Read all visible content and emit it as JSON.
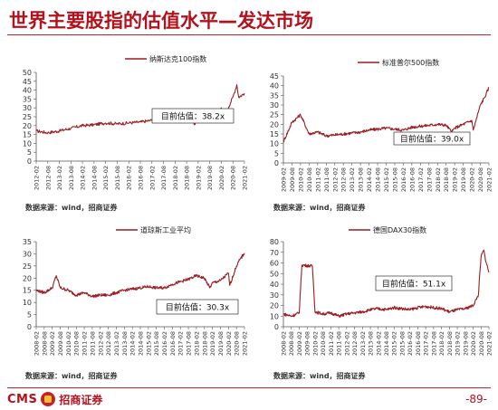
{
  "page": {
    "title": "世界主要股指的估值水平—发达市场",
    "page_number": "-89-"
  },
  "brand": {
    "cms": "CMS",
    "name": "招商证券",
    "color": "#b3121d"
  },
  "colors": {
    "line": "#9b1c22",
    "accent": "#c8202a"
  },
  "panels": [
    {
      "source": "数据来源：wind，招商证券"
    },
    {
      "source": "数据来源：wind，招商证券"
    },
    {
      "source": "数据来源：wind，招商证券"
    },
    {
      "source": "数据来源：wind，招商证券"
    }
  ],
  "chart_data": [
    {
      "type": "line",
      "series": [
        {
          "name": "纳斯达克100指数"
        }
      ],
      "annotation": "目前估值：38.2x",
      "ylim": [
        0,
        50
      ],
      "yticks": [
        0,
        5,
        10,
        15,
        20,
        25,
        30,
        35,
        40,
        45,
        50
      ],
      "xticks": [
        "2012-02",
        "2012-08",
        "2013-02",
        "2013-08",
        "2014-02",
        "2014-08",
        "2015-02",
        "2015-08",
        "2016-02",
        "2016-08",
        "2017-02",
        "2017-08",
        "2018-02",
        "2018-08",
        "2019-02",
        "2019-08",
        "2020-02",
        "2020-08",
        "2021-02"
      ],
      "points": [
        [
          "2012-02",
          17
        ],
        [
          "2012-08",
          16
        ],
        [
          "2013-02",
          17
        ],
        [
          "2013-08",
          18.5
        ],
        [
          "2014-02",
          20
        ],
        [
          "2014-08",
          20.5
        ],
        [
          "2015-02",
          21.5
        ],
        [
          "2015-08",
          21
        ],
        [
          "2016-02",
          21.5
        ],
        [
          "2016-08",
          22
        ],
        [
          "2017-02",
          23
        ],
        [
          "2017-08",
          24
        ],
        [
          "2018-02",
          25.5
        ],
        [
          "2018-08",
          26
        ],
        [
          "2018-12",
          20.5
        ],
        [
          "2019-02",
          23
        ],
        [
          "2019-08",
          25
        ],
        [
          "2020-02",
          30
        ],
        [
          "2020-03",
          24
        ],
        [
          "2020-08",
          36
        ],
        [
          "2020-10",
          43
        ],
        [
          "2020-11",
          36
        ],
        [
          "2021-02",
          38.2
        ]
      ]
    },
    {
      "type": "line",
      "series": [
        {
          "name": "标准普尔500指数"
        }
      ],
      "annotation": "目前估值：39.0x",
      "ylim": [
        0,
        45
      ],
      "yticks": [
        0,
        5,
        10,
        15,
        20,
        25,
        30,
        35,
        40,
        45
      ],
      "xticks": [
        "2009-02",
        "2009-08",
        "2010-02",
        "2010-08",
        "2011-02",
        "2011-08",
        "2012-02",
        "2012-08",
        "2013-02",
        "2013-08",
        "2014-02",
        "2014-08",
        "2015-02",
        "2015-08",
        "2016-02",
        "2016-08",
        "2017-02",
        "2017-08",
        "2018-02",
        "2018-08",
        "2019-02",
        "2019-08",
        "2020-02",
        "2020-08",
        "2021-02"
      ],
      "points": [
        [
          "2009-02",
          11
        ],
        [
          "2009-08",
          21
        ],
        [
          "2010-02",
          25
        ],
        [
          "2010-08",
          15
        ],
        [
          "2011-02",
          16
        ],
        [
          "2011-08",
          14
        ],
        [
          "2012-02",
          14.5
        ],
        [
          "2012-08",
          15
        ],
        [
          "2013-02",
          15.5
        ],
        [
          "2013-08",
          16
        ],
        [
          "2014-02",
          17
        ],
        [
          "2014-08",
          17.5
        ],
        [
          "2015-02",
          18
        ],
        [
          "2015-08",
          17.5
        ],
        [
          "2016-02",
          17
        ],
        [
          "2016-08",
          18.5
        ],
        [
          "2017-02",
          19
        ],
        [
          "2017-08",
          19.5
        ],
        [
          "2018-02",
          20
        ],
        [
          "2018-08",
          19.5
        ],
        [
          "2018-12",
          16
        ],
        [
          "2019-02",
          18
        ],
        [
          "2019-08",
          20
        ],
        [
          "2020-02",
          22
        ],
        [
          "2020-03",
          17
        ],
        [
          "2020-08",
          30
        ],
        [
          "2020-11",
          34
        ],
        [
          "2021-02",
          39
        ]
      ]
    },
    {
      "type": "line",
      "series": [
        {
          "name": "道琼斯工业平均"
        }
      ],
      "annotation": "目前估值：30.3x",
      "ylim": [
        0,
        35
      ],
      "yticks": [
        0,
        5,
        10,
        15,
        20,
        25,
        30,
        35
      ],
      "xticks": [
        "2008-02",
        "2008-08",
        "2009-02",
        "2009-08",
        "2010-02",
        "2010-08",
        "2011-02",
        "2011-08",
        "2012-02",
        "2012-08",
        "2013-02",
        "2013-08",
        "2014-02",
        "2014-08",
        "2015-02",
        "2015-08",
        "2016-02",
        "2016-08",
        "2017-02",
        "2017-08",
        "2018-02",
        "2018-08",
        "2019-02",
        "2019-08",
        "2020-02",
        "2020-08",
        "2021-02"
      ],
      "points": [
        [
          "2008-02",
          15
        ],
        [
          "2008-08",
          14
        ],
        [
          "2009-02",
          16
        ],
        [
          "2009-05",
          21
        ],
        [
          "2009-08",
          16
        ],
        [
          "2010-02",
          15
        ],
        [
          "2010-08",
          13
        ],
        [
          "2011-02",
          14
        ],
        [
          "2011-08",
          12.5
        ],
        [
          "2012-02",
          13
        ],
        [
          "2012-08",
          13
        ],
        [
          "2013-02",
          14
        ],
        [
          "2013-08",
          15
        ],
        [
          "2014-02",
          15.5
        ],
        [
          "2014-08",
          16
        ],
        [
          "2015-02",
          16.5
        ],
        [
          "2015-08",
          16
        ],
        [
          "2016-02",
          16
        ],
        [
          "2016-08",
          17.5
        ],
        [
          "2017-02",
          18.5
        ],
        [
          "2017-08",
          19.5
        ],
        [
          "2018-02",
          21
        ],
        [
          "2018-08",
          20
        ],
        [
          "2018-12",
          16
        ],
        [
          "2019-02",
          18
        ],
        [
          "2019-08",
          19
        ],
        [
          "2020-02",
          22
        ],
        [
          "2020-03",
          17
        ],
        [
          "2020-08",
          25
        ],
        [
          "2020-11",
          28
        ],
        [
          "2021-02",
          30.3
        ]
      ]
    },
    {
      "type": "line",
      "series": [
        {
          "name": "德国DAX30指数"
        }
      ],
      "annotation": "目前估值：51.1x",
      "ylim": [
        0,
        80
      ],
      "yticks": [
        0,
        10,
        20,
        30,
        40,
        50,
        60,
        70,
        80
      ],
      "xticks": [
        "2008-02",
        "2008-08",
        "2009-02",
        "2009-08",
        "2010-02",
        "2010-08",
        "2011-02",
        "2011-08",
        "2012-02",
        "2012-08",
        "2013-02",
        "2013-08",
        "2014-02",
        "2014-08",
        "2015-02",
        "2015-08",
        "2016-02",
        "2016-08",
        "2017-02",
        "2017-08",
        "2018-02",
        "2018-08",
        "2019-02",
        "2019-08",
        "2020-02",
        "2020-08",
        "2021-02"
      ],
      "points": [
        [
          "2008-02",
          12
        ],
        [
          "2008-08",
          10
        ],
        [
          "2009-02",
          13
        ],
        [
          "2009-04",
          58
        ],
        [
          "2009-12",
          57
        ],
        [
          "2010-02",
          14
        ],
        [
          "2010-08",
          12
        ],
        [
          "2011-02",
          13
        ],
        [
          "2011-08",
          10
        ],
        [
          "2012-02",
          12
        ],
        [
          "2012-08",
          13
        ],
        [
          "2013-02",
          14
        ],
        [
          "2013-08",
          16
        ],
        [
          "2014-02",
          17
        ],
        [
          "2014-08",
          16
        ],
        [
          "2015-02",
          18
        ],
        [
          "2015-08",
          17
        ],
        [
          "2016-02",
          16
        ],
        [
          "2016-08",
          18
        ],
        [
          "2017-02",
          19
        ],
        [
          "2017-08",
          18
        ],
        [
          "2018-02",
          17
        ],
        [
          "2018-08",
          14
        ],
        [
          "2019-02",
          16
        ],
        [
          "2019-08",
          17
        ],
        [
          "2020-02",
          20
        ],
        [
          "2020-06",
          30
        ],
        [
          "2020-08",
          66
        ],
        [
          "2020-10",
          72
        ],
        [
          "2020-12",
          60
        ],
        [
          "2021-02",
          51.1
        ]
      ]
    }
  ]
}
